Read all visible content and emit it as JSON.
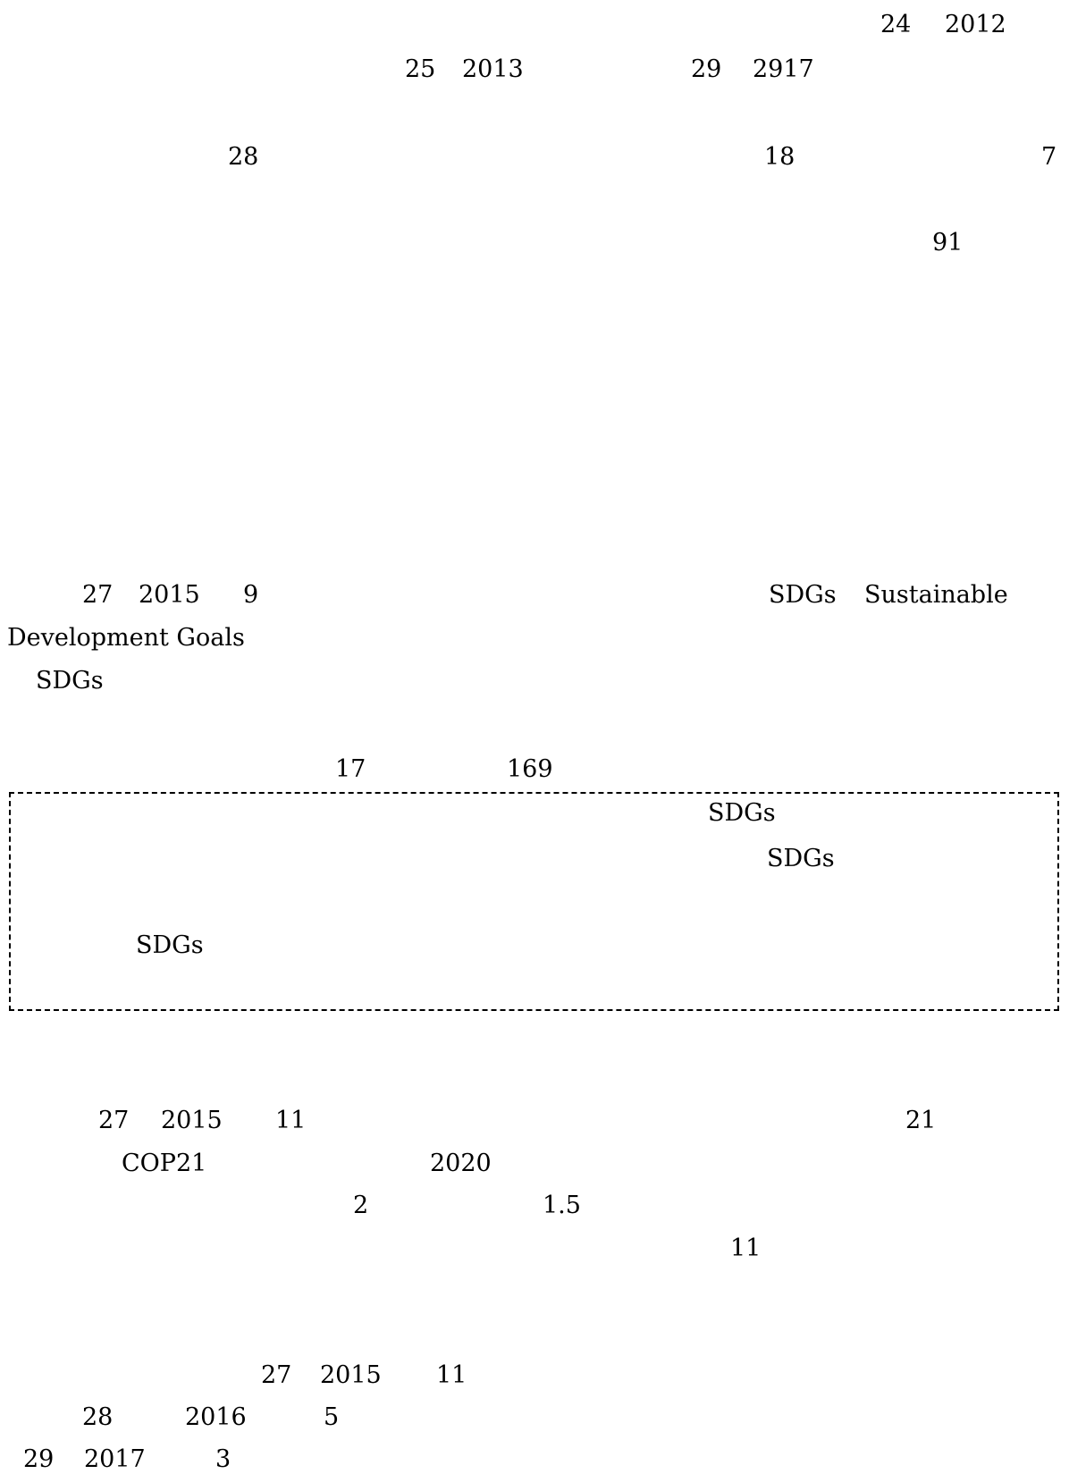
{
  "section1": {
    "line1": {
      "t1": "24",
      "t2": "2012"
    },
    "line2": {
      "t1": "25",
      "t2": "2013",
      "t3": "29",
      "t4": "2917"
    },
    "line3": {
      "t1": "28",
      "t2": "18",
      "t3": "7"
    },
    "line4": {
      "t1": "91"
    }
  },
  "section2": {
    "line1": {
      "t1": "27",
      "t2": "2015",
      "t3": "9",
      "t4": "SDGs",
      "t5": "Sustainable"
    },
    "line2": {
      "t1": "Development Goals"
    },
    "line3": {
      "t1": "SDGs"
    },
    "line4": {
      "t1": "17",
      "t2": "169"
    }
  },
  "box": {
    "line1": "SDGs",
    "line2": "SDGs",
    "line3": "SDGs"
  },
  "section3": {
    "line1": {
      "t1": "27",
      "t2": "2015",
      "t3": "11",
      "t4": "21"
    },
    "line2": {
      "t1": "COP21",
      "t2": "2020"
    },
    "line3": {
      "t1": "2",
      "t2": "1.5"
    },
    "line4": {
      "t1": "11"
    }
  },
  "section4": {
    "line1": {
      "t1": "27",
      "t2": "2015",
      "t3": "11"
    },
    "line2": {
      "t1": "28",
      "t2": "2016",
      "t3": "5"
    },
    "line3": {
      "t1": "29",
      "t2": "2017",
      "t3": "3"
    }
  }
}
